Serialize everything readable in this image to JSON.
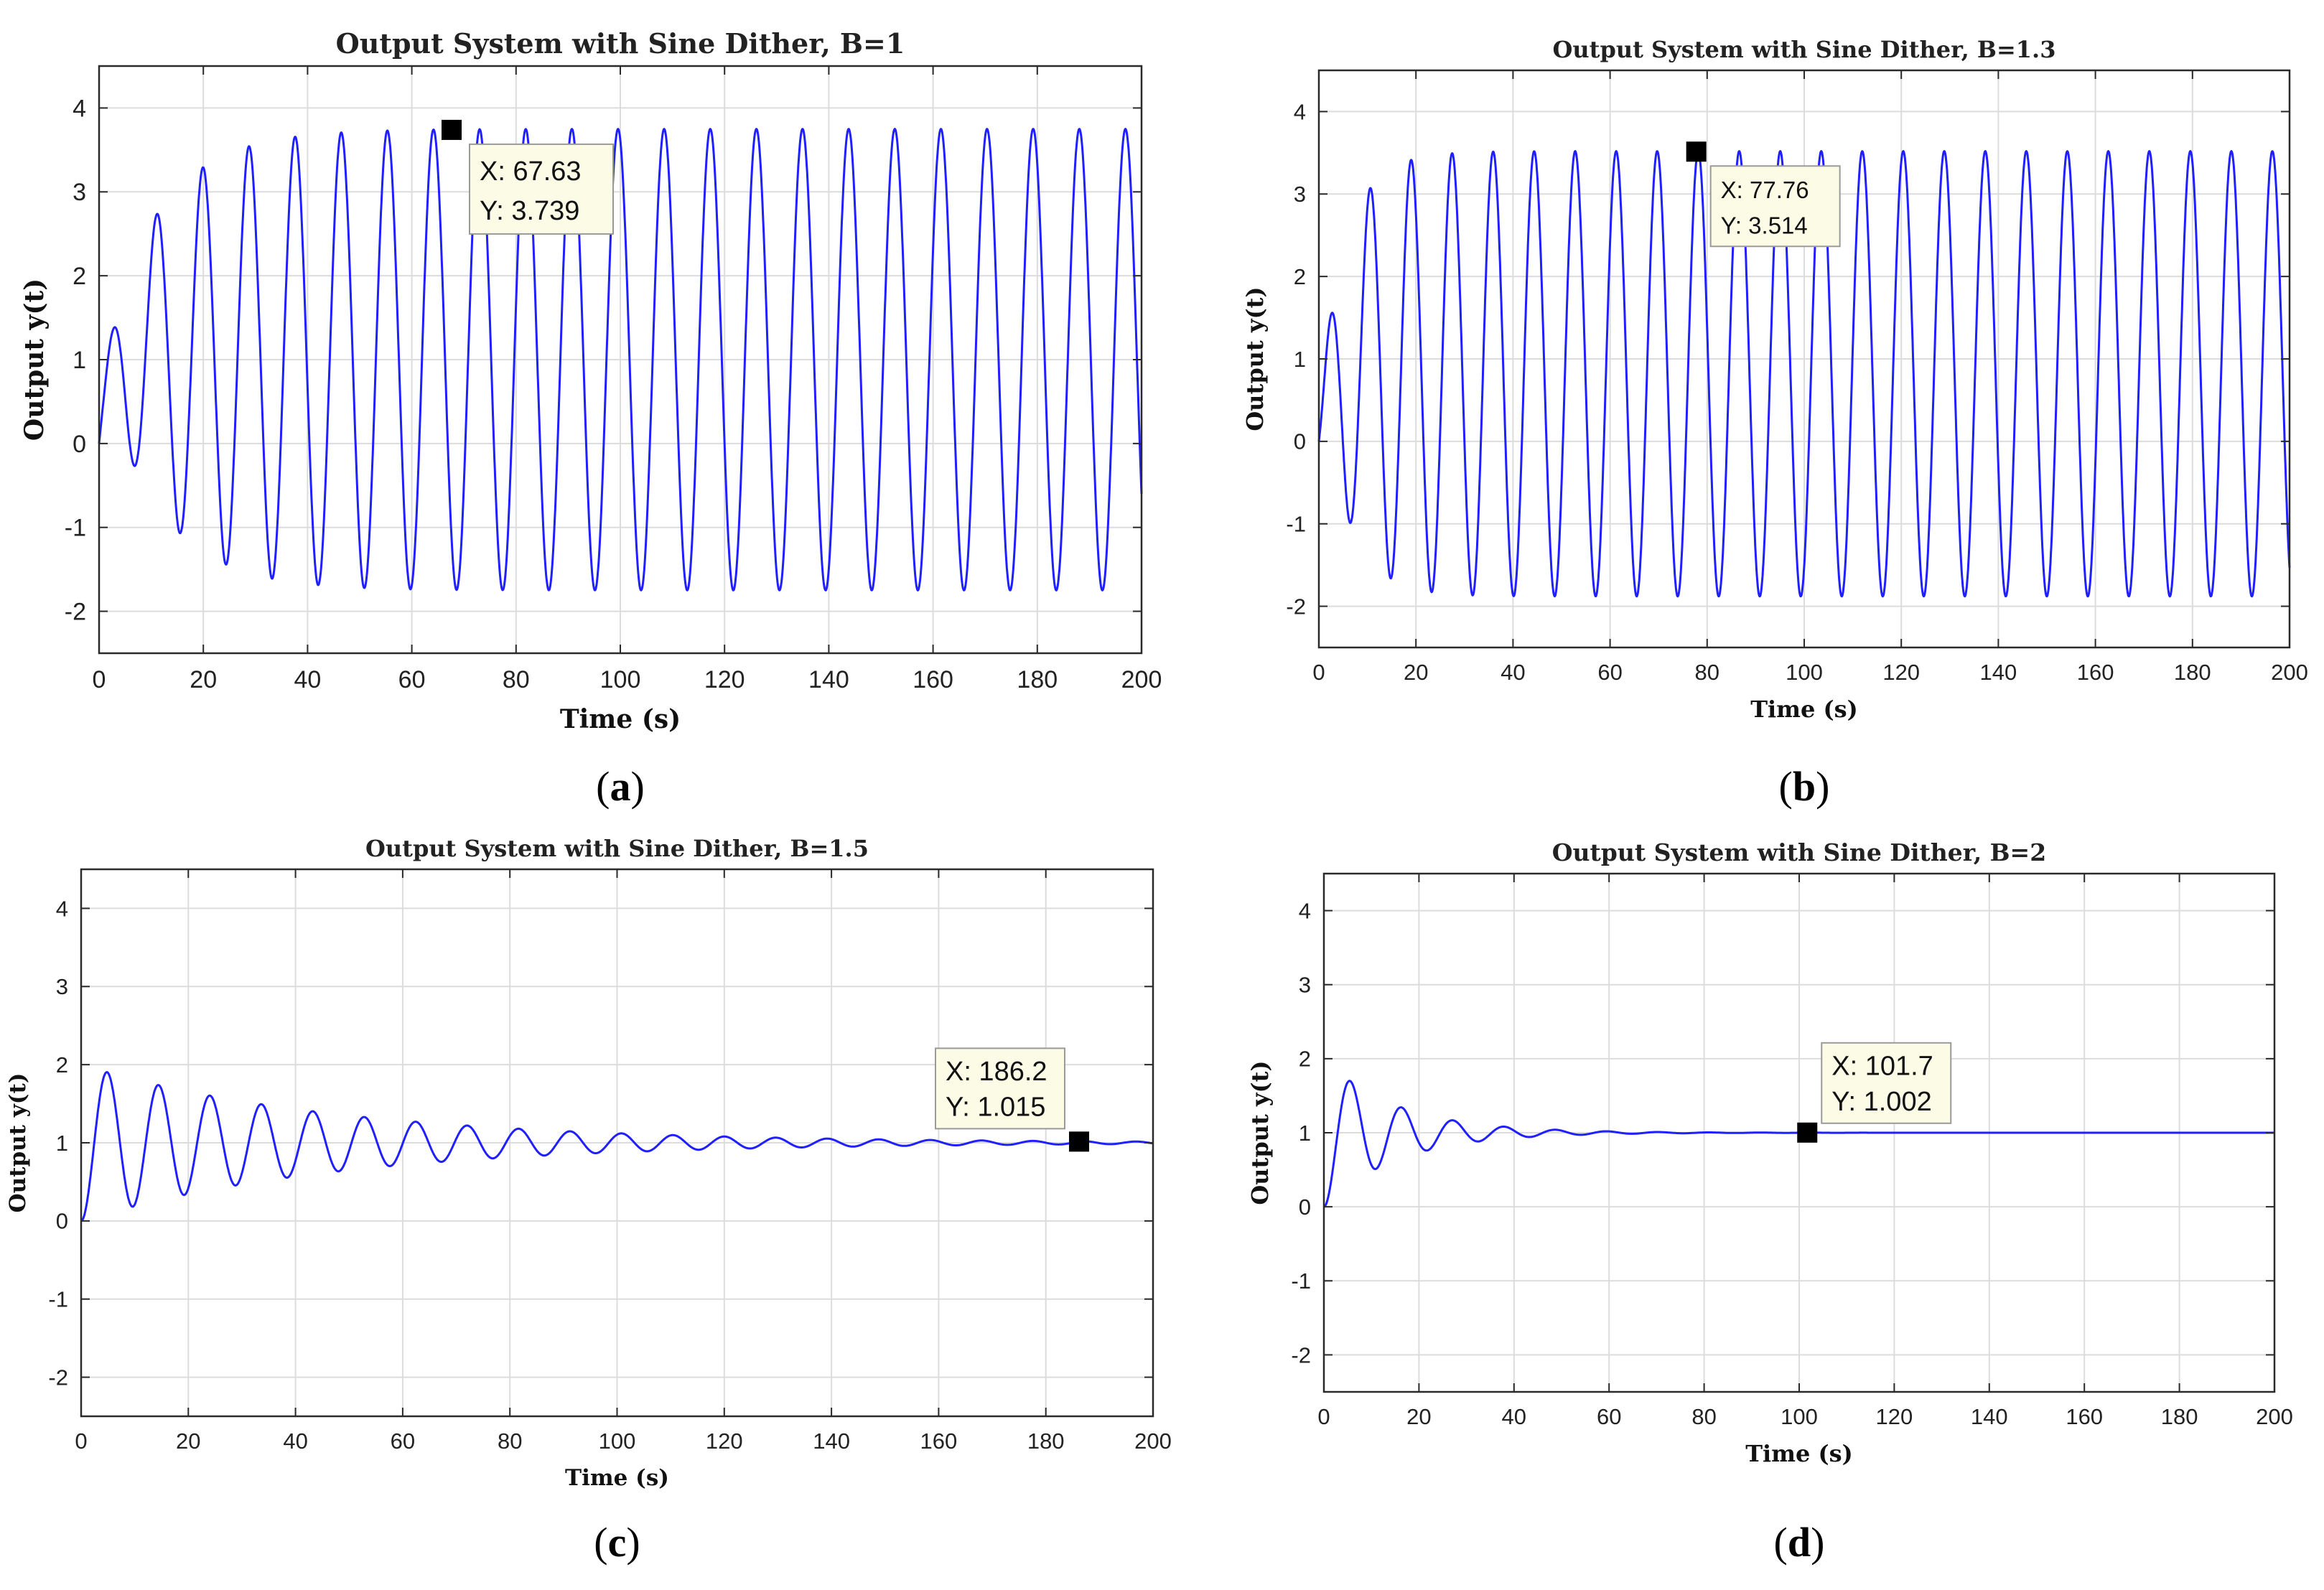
{
  "chart_data": [
    {
      "type": "line",
      "panel_label": "a",
      "title": "Output System with Sine Dither, B=1",
      "xlabel": "Time (s)",
      "ylabel": "Output y(t)",
      "xlim": [
        0,
        200
      ],
      "ylim": [
        -2.5,
        4.5
      ],
      "xticks": [
        0,
        20,
        40,
        60,
        80,
        100,
        120,
        140,
        160,
        180,
        200
      ],
      "yticks": [
        -2,
        -1,
        0,
        1,
        2,
        3,
        4
      ],
      "grid": true,
      "series": [
        {
          "name": "y(t)",
          "color": "#1f1fff",
          "model": {
            "kind": "limit_cycle",
            "period": 8.85,
            "amp_final": 2.75,
            "center": 1.0,
            "growth": 0.09
          }
        }
      ],
      "datatip": {
        "x": 67.63,
        "y": 3.739,
        "x_text": "X: 67.63",
        "y_text": "Y: 3.739"
      }
    },
    {
      "type": "line",
      "panel_label": "b",
      "title": "Output System with Sine Dither, B=1.3",
      "xlabel": "Time (s)",
      "ylabel": "Output y(t)",
      "xlim": [
        0,
        200
      ],
      "ylim": [
        -2.5,
        4.5
      ],
      "xticks": [
        0,
        20,
        40,
        60,
        80,
        100,
        120,
        140,
        160,
        180,
        200
      ],
      "yticks": [
        -2,
        -1,
        0,
        1,
        2,
        3,
        4
      ],
      "grid": true,
      "series": [
        {
          "name": "y(t)",
          "color": "#1f1fff",
          "model": {
            "kind": "limit_cycle",
            "period": 8.45,
            "amp_final": 2.7,
            "center": 0.82,
            "growth": 0.17
          }
        }
      ],
      "datatip": {
        "x": 77.76,
        "y": 3.514,
        "x_text": "X: 77.76",
        "y_text": "Y: 3.514"
      }
    },
    {
      "type": "line",
      "panel_label": "c",
      "title": "Output System with Sine Dither, B=1.5",
      "xlabel": "Time (s)",
      "ylabel": "Output y(t)",
      "xlim": [
        0,
        200
      ],
      "ylim": [
        -2.5,
        4.5
      ],
      "xticks": [
        0,
        20,
        40,
        60,
        80,
        100,
        120,
        140,
        160,
        180,
        200
      ],
      "yticks": [
        -2,
        -1,
        0,
        1,
        2,
        3,
        4
      ],
      "grid": true,
      "series": [
        {
          "name": "y(t)",
          "color": "#1f1fff",
          "model": {
            "kind": "damped",
            "period": 9.6,
            "decay": 0.021,
            "final": 1.0
          }
        }
      ],
      "datatip": {
        "x": 186.2,
        "y": 1.015,
        "x_text": "X: 186.2",
        "y_text": "Y: 1.015"
      }
    },
    {
      "type": "line",
      "panel_label": "d",
      "title": "Output System with Sine Dither, B=2",
      "xlabel": "Time (s)",
      "ylabel": "Output y(t)",
      "xlim": [
        0,
        200
      ],
      "ylim": [
        -2.5,
        4.5
      ],
      "xticks": [
        0,
        20,
        40,
        60,
        80,
        100,
        120,
        140,
        160,
        180,
        200
      ],
      "yticks": [
        -2,
        -1,
        0,
        1,
        2,
        3,
        4
      ],
      "grid": true,
      "series": [
        {
          "name": "y(t)",
          "color": "#1f1fff",
          "model": {
            "kind": "damped",
            "period": 10.8,
            "decay": 0.066,
            "final": 1.0
          }
        }
      ],
      "datatip": {
        "x": 101.7,
        "y": 1.002,
        "x_text": "X: 101.7",
        "y_text": "Y: 1.002"
      }
    }
  ]
}
